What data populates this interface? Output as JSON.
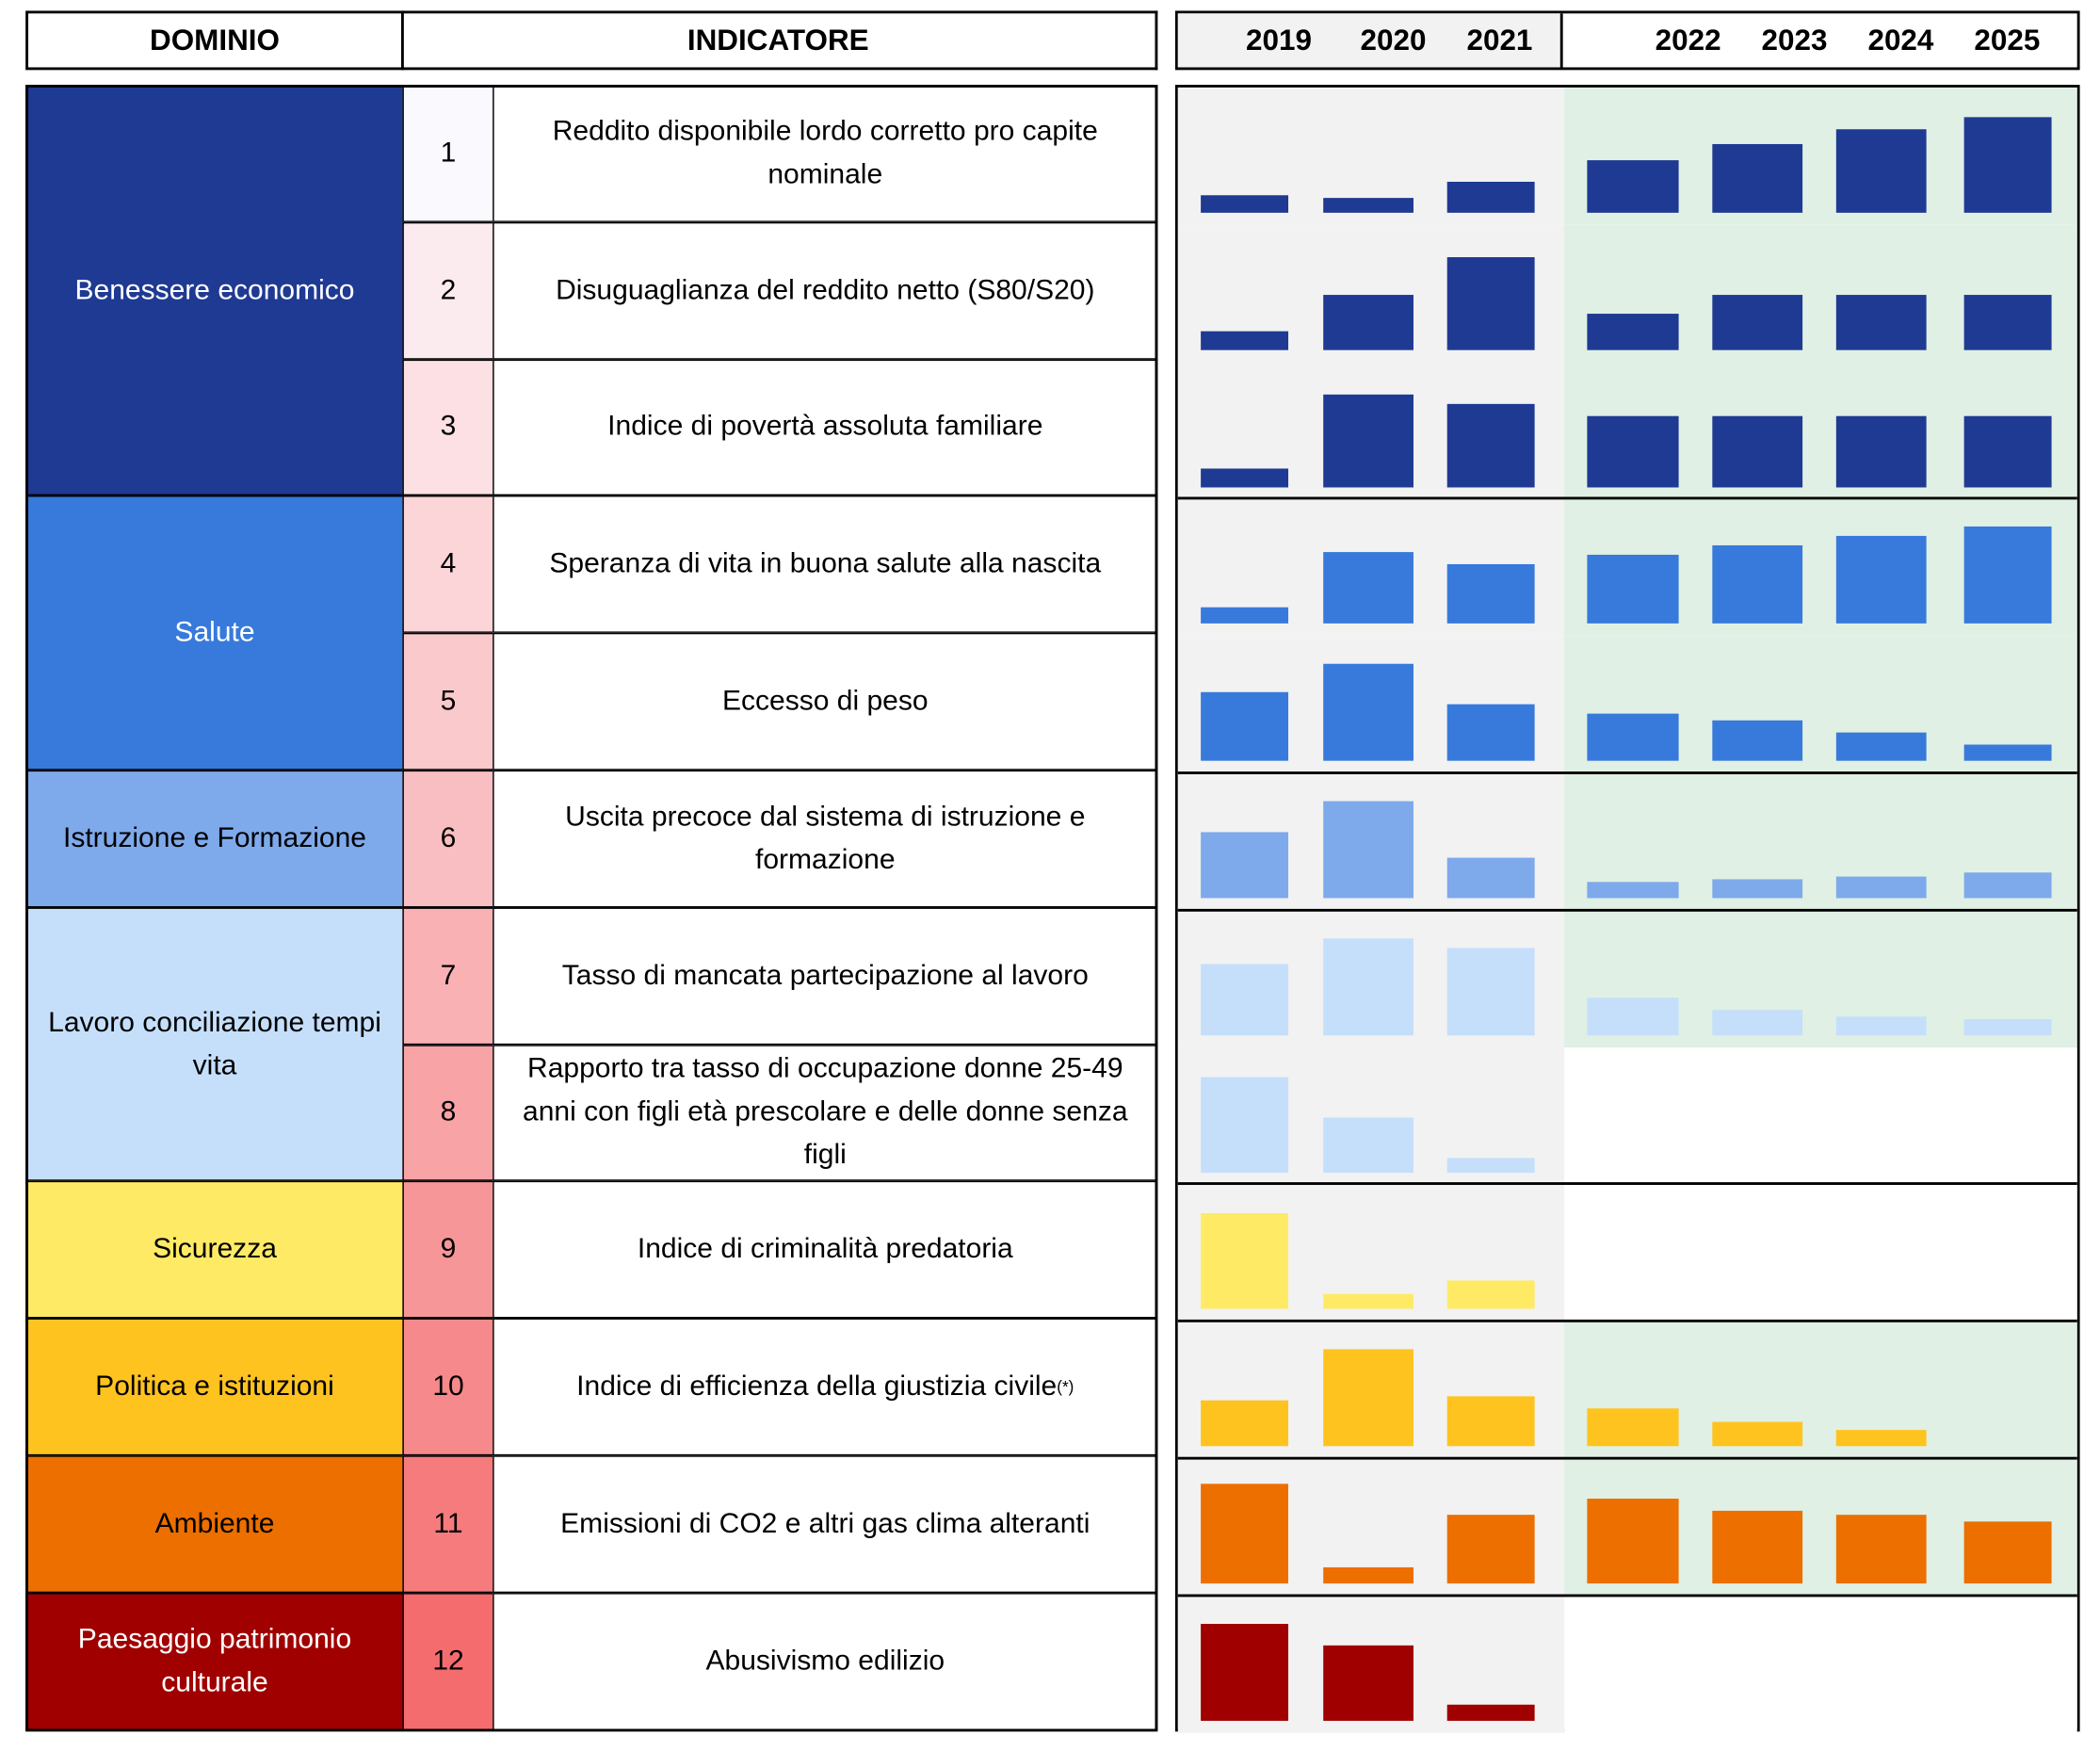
{
  "header": {
    "dominio": "DOMINIO",
    "indicatore": "INDICATORE"
  },
  "years": [
    "2019",
    "2020",
    "2021",
    "2022",
    "2023",
    "2024",
    "2025"
  ],
  "colors": {
    "panel_history": "#f2f2f2",
    "panel_forecast": "#e0f0e4"
  },
  "domains": [
    {
      "label": "Benessere economico",
      "color": "#1f3a93",
      "text": "#ffffff",
      "rows": [
        0,
        2
      ]
    },
    {
      "label": "Salute",
      "color": "#377adb",
      "text": "#ffffff",
      "rows": [
        3,
        4
      ]
    },
    {
      "label": "Istruzione e Formazione",
      "color": "#7eaaeb",
      "text": "#000000",
      "rows": [
        5,
        5
      ]
    },
    {
      "label": "Lavoro conciliazione tempi vita",
      "color": "#c5dffb",
      "text": "#000000",
      "rows": [
        6,
        7
      ]
    },
    {
      "label": "Sicurezza",
      "color": "#ffea66",
      "text": "#000000",
      "rows": [
        8,
        8
      ]
    },
    {
      "label": "Politica e istituzioni",
      "color": "#ffc31f",
      "text": "#000000",
      "rows": [
        9,
        9
      ]
    },
    {
      "label": "Ambiente",
      "color": "#ec6f00",
      "text": "#000000",
      "rows": [
        10,
        10
      ]
    },
    {
      "label": "Paesaggio patrimonio culturale",
      "color": "#a00000",
      "text": "#ffffff",
      "rows": [
        11,
        11
      ]
    }
  ],
  "chart_data": {
    "type": "bar",
    "title": "",
    "note": "relative bar heights per indicator (unlabelled small multiples)",
    "categories": [
      "2019",
      "2020",
      "2021",
      "2022",
      "2023",
      "2024",
      "2025"
    ],
    "series": [
      {
        "num": "1",
        "name": "Reddito disponibile lordo corretto pro capite nominale",
        "num_color": "#f9f9fe",
        "domain": 0,
        "forecast": true,
        "values": [
          13,
          11,
          23,
          39,
          51,
          62,
          71
        ]
      },
      {
        "num": "2",
        "name": "Disuguaglianza del reddito netto (S80/S20)",
        "num_color": "#fcebee",
        "domain": 0,
        "forecast": true,
        "values": [
          14,
          41,
          69,
          27,
          41,
          41,
          41
        ]
      },
      {
        "num": "3",
        "name": "Indice di povertà assoluta familiare",
        "num_color": "#fce0e3",
        "domain": 0,
        "forecast": true,
        "values": [
          14,
          69,
          62,
          53,
          53,
          53,
          53
        ]
      },
      {
        "num": "4",
        "name": "Speranza di vita in buona salute alla nascita",
        "num_color": "#fbd5d8",
        "domain": 1,
        "forecast": true,
        "values": [
          12,
          53,
          44,
          51,
          58,
          65,
          72
        ]
      },
      {
        "num": "5",
        "name": "Eccesso di peso",
        "num_color": "#fac9cc",
        "domain": 1,
        "forecast": true,
        "values": [
          51,
          72,
          42,
          35,
          30,
          21,
          12
        ]
      },
      {
        "num": "6",
        "name": "Uscita precoce dal sistema di istruzione e formazione",
        "num_color": "#f9bec1",
        "domain": 2,
        "forecast": true,
        "values": [
          49,
          72,
          30,
          12,
          14,
          16,
          19
        ]
      },
      {
        "num": "7",
        "name": "Tasso di mancata partecipazione al lavoro",
        "num_color": "#f9b1b4",
        "domain": 3,
        "forecast": true,
        "values": [
          53,
          72,
          65,
          28,
          19,
          14,
          12
        ]
      },
      {
        "num": "8",
        "name": "Rapporto tra tasso di occupazione donne 25-49 anni con figli età prescolare e delle donne senza figli",
        "num_color": "#f8a3a6",
        "domain": 3,
        "forecast": false,
        "values": [
          71,
          41,
          11,
          null,
          null,
          null,
          null
        ]
      },
      {
        "num": "9",
        "name": "Indice di criminalità predatoria",
        "num_color": "#f79698",
        "domain": 4,
        "forecast": false,
        "values": [
          71,
          11,
          21,
          null,
          null,
          null,
          null
        ]
      },
      {
        "num": "10",
        "name": "Indice di efficienza della giustizia civile",
        "sup": "(*)",
        "num_color": "#f6898b",
        "domain": 5,
        "forecast": true,
        "values": [
          34,
          72,
          37,
          28,
          18,
          12,
          null
        ]
      },
      {
        "num": "11",
        "name": "Emissioni di CO2 e altri gas clima alteranti",
        "num_color": "#f67b7d",
        "domain": 6,
        "forecast": true,
        "values": [
          74,
          12,
          51,
          63,
          54,
          51,
          46
        ]
      },
      {
        "num": "12",
        "name": "Abusivismo edilizio",
        "num_color": "#f56c6e",
        "domain": 7,
        "forecast": false,
        "values": [
          72,
          56,
          12,
          null,
          null,
          null,
          null
        ]
      }
    ],
    "ylim": [
      0,
      75
    ]
  }
}
